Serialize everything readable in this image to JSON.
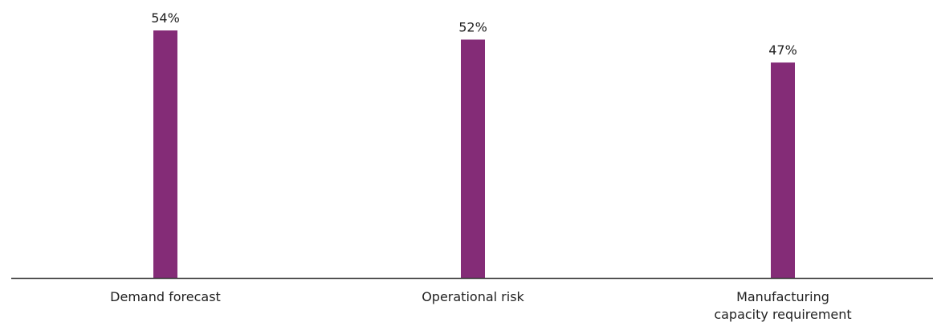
{
  "chart_data": {
    "type": "bar",
    "categories": [
      "Demand forecast",
      "Operational risk",
      "Manufacturing capacity requirement"
    ],
    "category_lines": [
      [
        "Demand forecast"
      ],
      [
        "Operational risk"
      ],
      [
        "Manufacturing",
        "capacity requirement"
      ]
    ],
    "values": [
      54,
      52,
      47
    ],
    "value_labels": [
      "54%",
      "52%",
      "47%"
    ],
    "unit": "%",
    "ylim": [
      0,
      54
    ],
    "grid": false,
    "legend": "none",
    "bar_color": "#842c77",
    "axis_color": "#333333"
  }
}
